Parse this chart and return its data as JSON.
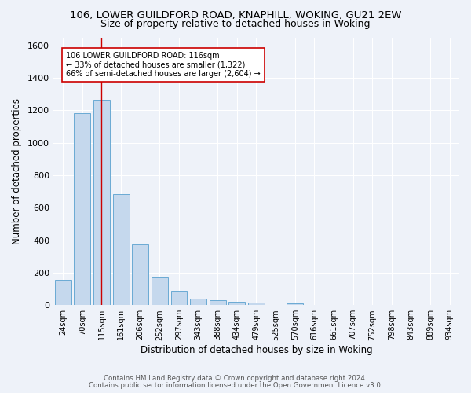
{
  "title1": "106, LOWER GUILDFORD ROAD, KNAPHILL, WOKING, GU21 2EW",
  "title2": "Size of property relative to detached houses in Woking",
  "xlabel": "Distribution of detached houses by size in Woking",
  "ylabel": "Number of detached properties",
  "footnote1": "Contains HM Land Registry data © Crown copyright and database right 2024.",
  "footnote2": "Contains public sector information licensed under the Open Government Licence v3.0.",
  "bar_labels": [
    "24sqm",
    "70sqm",
    "115sqm",
    "161sqm",
    "206sqm",
    "252sqm",
    "297sqm",
    "343sqm",
    "388sqm",
    "434sqm",
    "479sqm",
    "525sqm",
    "570sqm",
    "616sqm",
    "661sqm",
    "707sqm",
    "752sqm",
    "798sqm",
    "843sqm",
    "889sqm",
    "934sqm"
  ],
  "bar_values": [
    155,
    1185,
    1265,
    685,
    375,
    170,
    90,
    38,
    28,
    20,
    15,
    0,
    12,
    0,
    0,
    0,
    0,
    0,
    0,
    0,
    0
  ],
  "bar_color": "#c5d8ed",
  "bar_edge_color": "#6aaad4",
  "property_bin_index": 2,
  "vline_color": "#cc0000",
  "annotation_text": "106 LOWER GUILDFORD ROAD: 116sqm\n← 33% of detached houses are smaller (1,322)\n66% of semi-detached houses are larger (2,604) →",
  "annotation_box_color": "#ffffff",
  "annotation_box_edge": "#cc0000",
  "ylim": [
    0,
    1650
  ],
  "bg_color": "#eef2f9",
  "grid_color": "#ffffff",
  "title1_fontsize": 9.5,
  "title2_fontsize": 9
}
